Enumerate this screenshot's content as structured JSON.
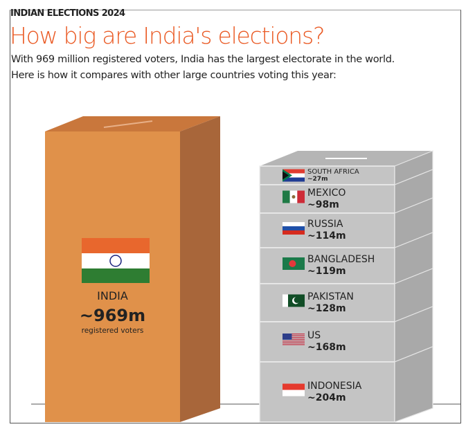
{
  "header": {
    "kicker": "INDIAN ELECTIONS 2024",
    "title": "How big are India's elections?",
    "subtitle_1": "With 969 million registered voters, India has the largest electorate in the world.",
    "subtitle_2": "Here is how it compares with other large countries voting this year:"
  },
  "india": {
    "name": "INDIA",
    "value_label": "~969m",
    "caption": "registered voters"
  },
  "others": [
    {
      "name": "SOUTH AFRICA",
      "value_label": "~27m",
      "flag": "south-africa"
    },
    {
      "name": "MEXICO",
      "value_label": "~98m",
      "flag": "mexico"
    },
    {
      "name": "RUSSIA",
      "value_label": "~114m",
      "flag": "russia"
    },
    {
      "name": "BANGLADESH",
      "value_label": "~119m",
      "flag": "bangladesh"
    },
    {
      "name": "PAKISTAN",
      "value_label": "~128m",
      "flag": "pakistan"
    },
    {
      "name": "US",
      "value_label": "~168m",
      "flag": "us"
    },
    {
      "name": "INDONESIA",
      "value_label": "~204m",
      "flag": "indonesia"
    }
  ],
  "colors": {
    "accent": "#ea5a24",
    "india_front": "#e0914a",
    "india_side": "#a8663a",
    "india_top": "#c9773c",
    "stack_front": "#c4c4c4",
    "stack_side": "#a9a9a9",
    "stack_top": "#b5b5b5"
  },
  "chart_data": {
    "type": "bar",
    "categories": [
      "India",
      "South Africa",
      "Mexico",
      "Russia",
      "Bangladesh",
      "Pakistan",
      "US",
      "Indonesia"
    ],
    "values": [
      969,
      27,
      98,
      114,
      119,
      128,
      168,
      204
    ]
  }
}
